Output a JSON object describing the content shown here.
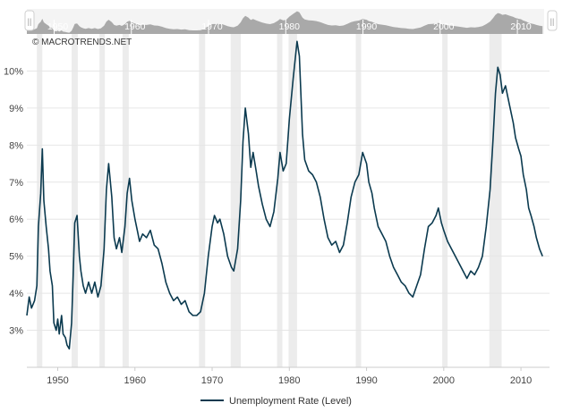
{
  "watermark": "© MACROTRENDS.NET",
  "navigator": {
    "tick_labels": [
      "1950",
      "1960",
      "1970",
      "1980",
      "1990",
      "2000",
      "2010"
    ],
    "handle_glyph": "||"
  },
  "colors": {
    "line": "#0b3a4f",
    "recession": "#ececec",
    "grid": "#e6e6e6",
    "axis_text": "#444444",
    "navigator_fill": "#a9a9a9"
  },
  "chart_data": {
    "type": "line",
    "series": [
      {
        "name": "Unemployment Rate (Level)",
        "points": [
          [
            1946.0,
            3.4
          ],
          [
            1946.3,
            3.9
          ],
          [
            1946.6,
            3.6
          ],
          [
            1947.0,
            3.8
          ],
          [
            1947.3,
            4.2
          ],
          [
            1947.5,
            5.8
          ],
          [
            1947.8,
            6.7
          ],
          [
            1948.0,
            7.9
          ],
          [
            1948.2,
            6.5
          ],
          [
            1948.5,
            5.8
          ],
          [
            1948.8,
            5.2
          ],
          [
            1949.0,
            4.6
          ],
          [
            1949.3,
            4.2
          ],
          [
            1949.5,
            3.2
          ],
          [
            1949.8,
            3.0
          ],
          [
            1950.0,
            3.3
          ],
          [
            1950.2,
            2.9
          ],
          [
            1950.5,
            3.4
          ],
          [
            1950.7,
            2.9
          ],
          [
            1951.0,
            2.8
          ],
          [
            1951.2,
            2.6
          ],
          [
            1951.5,
            2.5
          ],
          [
            1951.8,
            3.2
          ],
          [
            1952.0,
            4.5
          ],
          [
            1952.2,
            5.9
          ],
          [
            1952.5,
            6.1
          ],
          [
            1952.8,
            5.0
          ],
          [
            1953.0,
            4.6
          ],
          [
            1953.3,
            4.2
          ],
          [
            1953.6,
            4.0
          ],
          [
            1954.0,
            4.3
          ],
          [
            1954.4,
            4.0
          ],
          [
            1954.8,
            4.3
          ],
          [
            1955.2,
            3.9
          ],
          [
            1955.6,
            4.2
          ],
          [
            1956.0,
            5.2
          ],
          [
            1956.3,
            6.8
          ],
          [
            1956.6,
            7.5
          ],
          [
            1957.0,
            6.6
          ],
          [
            1957.3,
            5.5
          ],
          [
            1957.6,
            5.2
          ],
          [
            1958.0,
            5.5
          ],
          [
            1958.3,
            5.1
          ],
          [
            1958.7,
            5.8
          ],
          [
            1959.0,
            6.7
          ],
          [
            1959.3,
            7.1
          ],
          [
            1959.6,
            6.5
          ],
          [
            1960.0,
            6.0
          ],
          [
            1960.3,
            5.7
          ],
          [
            1960.6,
            5.4
          ],
          [
            1961.0,
            5.6
          ],
          [
            1961.5,
            5.5
          ],
          [
            1962.0,
            5.7
          ],
          [
            1962.5,
            5.3
          ],
          [
            1963.0,
            5.2
          ],
          [
            1963.5,
            4.8
          ],
          [
            1964.0,
            4.3
          ],
          [
            1964.5,
            4.0
          ],
          [
            1965.0,
            3.8
          ],
          [
            1965.5,
            3.9
          ],
          [
            1966.0,
            3.7
          ],
          [
            1966.5,
            3.8
          ],
          [
            1967.0,
            3.5
          ],
          [
            1967.5,
            3.4
          ],
          [
            1968.0,
            3.4
          ],
          [
            1968.5,
            3.5
          ],
          [
            1969.0,
            4.0
          ],
          [
            1969.5,
            5.0
          ],
          [
            1970.0,
            5.8
          ],
          [
            1970.3,
            6.1
          ],
          [
            1970.7,
            5.9
          ],
          [
            1971.0,
            6.0
          ],
          [
            1971.5,
            5.6
          ],
          [
            1972.0,
            5.0
          ],
          [
            1972.5,
            4.7
          ],
          [
            1972.8,
            4.6
          ],
          [
            1973.3,
            5.2
          ],
          [
            1973.7,
            6.5
          ],
          [
            1974.0,
            8.1
          ],
          [
            1974.3,
            9.0
          ],
          [
            1974.7,
            8.3
          ],
          [
            1975.0,
            7.4
          ],
          [
            1975.3,
            7.8
          ],
          [
            1975.7,
            7.3
          ],
          [
            1976.0,
            6.9
          ],
          [
            1976.5,
            6.4
          ],
          [
            1977.0,
            6.0
          ],
          [
            1977.5,
            5.8
          ],
          [
            1978.0,
            6.2
          ],
          [
            1978.5,
            7.1
          ],
          [
            1978.8,
            7.8
          ],
          [
            1979.2,
            7.3
          ],
          [
            1979.6,
            7.5
          ],
          [
            1980.0,
            8.7
          ],
          [
            1980.5,
            9.8
          ],
          [
            1981.0,
            10.8
          ],
          [
            1981.3,
            10.4
          ],
          [
            1981.7,
            8.3
          ],
          [
            1982.0,
            7.6
          ],
          [
            1982.5,
            7.3
          ],
          [
            1983.0,
            7.2
          ],
          [
            1983.5,
            7.0
          ],
          [
            1984.0,
            6.6
          ],
          [
            1984.5,
            6.0
          ],
          [
            1985.0,
            5.5
          ],
          [
            1985.5,
            5.3
          ],
          [
            1986.0,
            5.4
          ],
          [
            1986.5,
            5.1
          ],
          [
            1987.0,
            5.3
          ],
          [
            1987.5,
            5.9
          ],
          [
            1988.0,
            6.6
          ],
          [
            1988.5,
            7.0
          ],
          [
            1989.0,
            7.2
          ],
          [
            1989.5,
            7.8
          ],
          [
            1990.0,
            7.5
          ],
          [
            1990.3,
            7.0
          ],
          [
            1990.7,
            6.7
          ],
          [
            1991.0,
            6.3
          ],
          [
            1991.5,
            5.8
          ],
          [
            1992.0,
            5.6
          ],
          [
            1992.5,
            5.4
          ],
          [
            1993.0,
            5.0
          ],
          [
            1993.5,
            4.7
          ],
          [
            1994.0,
            4.5
          ],
          [
            1994.5,
            4.3
          ],
          [
            1995.0,
            4.2
          ],
          [
            1995.5,
            4.0
          ],
          [
            1996.0,
            3.9
          ],
          [
            1996.5,
            4.2
          ],
          [
            1997.0,
            4.5
          ],
          [
            1997.5,
            5.2
          ],
          [
            1998.0,
            5.8
          ],
          [
            1998.5,
            5.9
          ],
          [
            1999.0,
            6.1
          ],
          [
            1999.3,
            6.3
          ],
          [
            1999.7,
            5.9
          ],
          [
            2000.0,
            5.7
          ],
          [
            2000.5,
            5.4
          ],
          [
            2001.0,
            5.2
          ],
          [
            2001.5,
            5.0
          ],
          [
            2002.0,
            4.8
          ],
          [
            2002.5,
            4.6
          ],
          [
            2003.0,
            4.4
          ],
          [
            2003.5,
            4.6
          ],
          [
            2004.0,
            4.5
          ],
          [
            2004.5,
            4.7
          ],
          [
            2005.0,
            5.0
          ],
          [
            2005.5,
            5.8
          ],
          [
            2006.0,
            6.8
          ],
          [
            2006.4,
            8.2
          ],
          [
            2006.7,
            9.4
          ],
          [
            2007.0,
            10.1
          ],
          [
            2007.3,
            9.9
          ],
          [
            2007.6,
            9.4
          ],
          [
            2008.0,
            9.6
          ],
          [
            2008.5,
            9.1
          ],
          [
            2009.0,
            8.6
          ],
          [
            2009.3,
            8.2
          ],
          [
            2009.7,
            7.9
          ],
          [
            2010.0,
            7.7
          ],
          [
            2010.3,
            7.2
          ],
          [
            2010.7,
            6.8
          ],
          [
            2011.0,
            6.3
          ],
          [
            2011.3,
            6.1
          ],
          [
            2011.7,
            5.8
          ],
          [
            2012.0,
            5.5
          ],
          [
            2012.4,
            5.2
          ],
          [
            2012.8,
            5.0
          ]
        ]
      }
    ],
    "recession_bands": [
      [
        1947.3,
        1948.0
      ],
      [
        1951.8,
        1952.6
      ],
      [
        1955.4,
        1956.1
      ],
      [
        1958.4,
        1959.2
      ],
      [
        1968.3,
        1969.1
      ],
      [
        1972.4,
        1973.7
      ],
      [
        1978.4,
        1979.1
      ],
      [
        1979.9,
        1981.0
      ],
      [
        1988.6,
        1989.3
      ],
      [
        1999.8,
        2000.5
      ],
      [
        2005.9,
        2007.5
      ]
    ],
    "x_ticks": [
      "1950",
      "1960",
      "1970",
      "1980",
      "1990",
      "2000",
      "2010"
    ],
    "y_ticks": [
      "3%",
      "4%",
      "5%",
      "6%",
      "7%",
      "8%",
      "9%",
      "10%"
    ],
    "xlim": [
      1946.0,
      2013.7
    ],
    "ylim": [
      2.0,
      11.0
    ],
    "grid": true,
    "legend_position": "bottom-center"
  }
}
